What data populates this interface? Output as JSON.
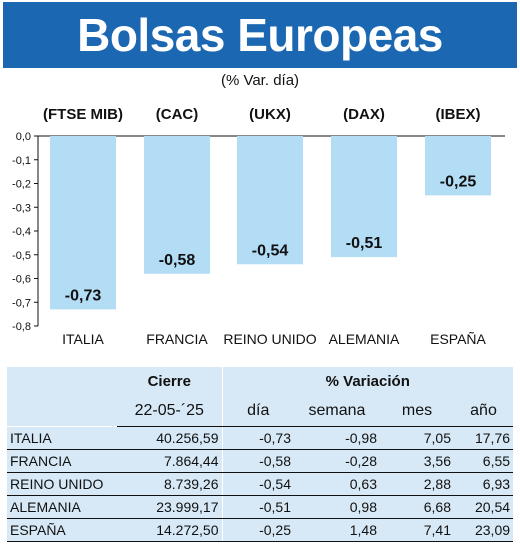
{
  "title": "Bolsas Europeas",
  "subtitle": "(% Var. día)",
  "chart_data": {
    "type": "bar",
    "ylim": [
      -0.8,
      0.0
    ],
    "yticks": [
      "0,0",
      "-0,1",
      "-0,2",
      "-0,3",
      "-0,4",
      "-0,5",
      "-0,6",
      "-0,7",
      "-0,8"
    ],
    "grid": false,
    "categories": [
      "ITALIA",
      "FRANCIA",
      "REINO UNIDO",
      "ALEMANIA",
      "ESPAÑA"
    ],
    "indices": [
      "(FTSE MIB)",
      "(CAC)",
      "(UKX)",
      "(DAX)",
      "(IBEX)"
    ],
    "values": [
      -0.73,
      -0.58,
      -0.54,
      -0.51,
      -0.25
    ],
    "value_labels": [
      "-0,73",
      "-0,58",
      "-0,54",
      "-0,51",
      "-0,25"
    ],
    "bar_color": "#b3dcf5"
  },
  "table": {
    "header_cierre": "Cierre",
    "header_variacion": "% Variación",
    "date": "22-05-´25",
    "cols": [
      "día",
      "semana",
      "mes",
      "año"
    ],
    "rows": [
      {
        "name": "ITALIA",
        "cierre": "40.256,59",
        "dia": "-0,73",
        "semana": "-0,98",
        "mes": "7,05",
        "ano": "17,76"
      },
      {
        "name": "FRANCIA",
        "cierre": "7.864,44",
        "dia": "-0,58",
        "semana": "-0,28",
        "mes": "3,56",
        "ano": "6,55"
      },
      {
        "name": "REINO UNIDO",
        "cierre": "8.739,26",
        "dia": "-0,54",
        "semana": "0,63",
        "mes": "2,88",
        "ano": "6,93"
      },
      {
        "name": "ALEMANIA",
        "cierre": "23.999,17",
        "dia": "-0,51",
        "semana": "0,98",
        "mes": "6,68",
        "ano": "20,54"
      },
      {
        "name": "ESPAÑA",
        "cierre": "14.272,50",
        "dia": "-0,25",
        "semana": "1,48",
        "mes": "7,41",
        "ano": "23,09"
      }
    ]
  },
  "colors": {
    "title_bg": "#1b67b1",
    "table_bg": "#d7e9f6"
  }
}
